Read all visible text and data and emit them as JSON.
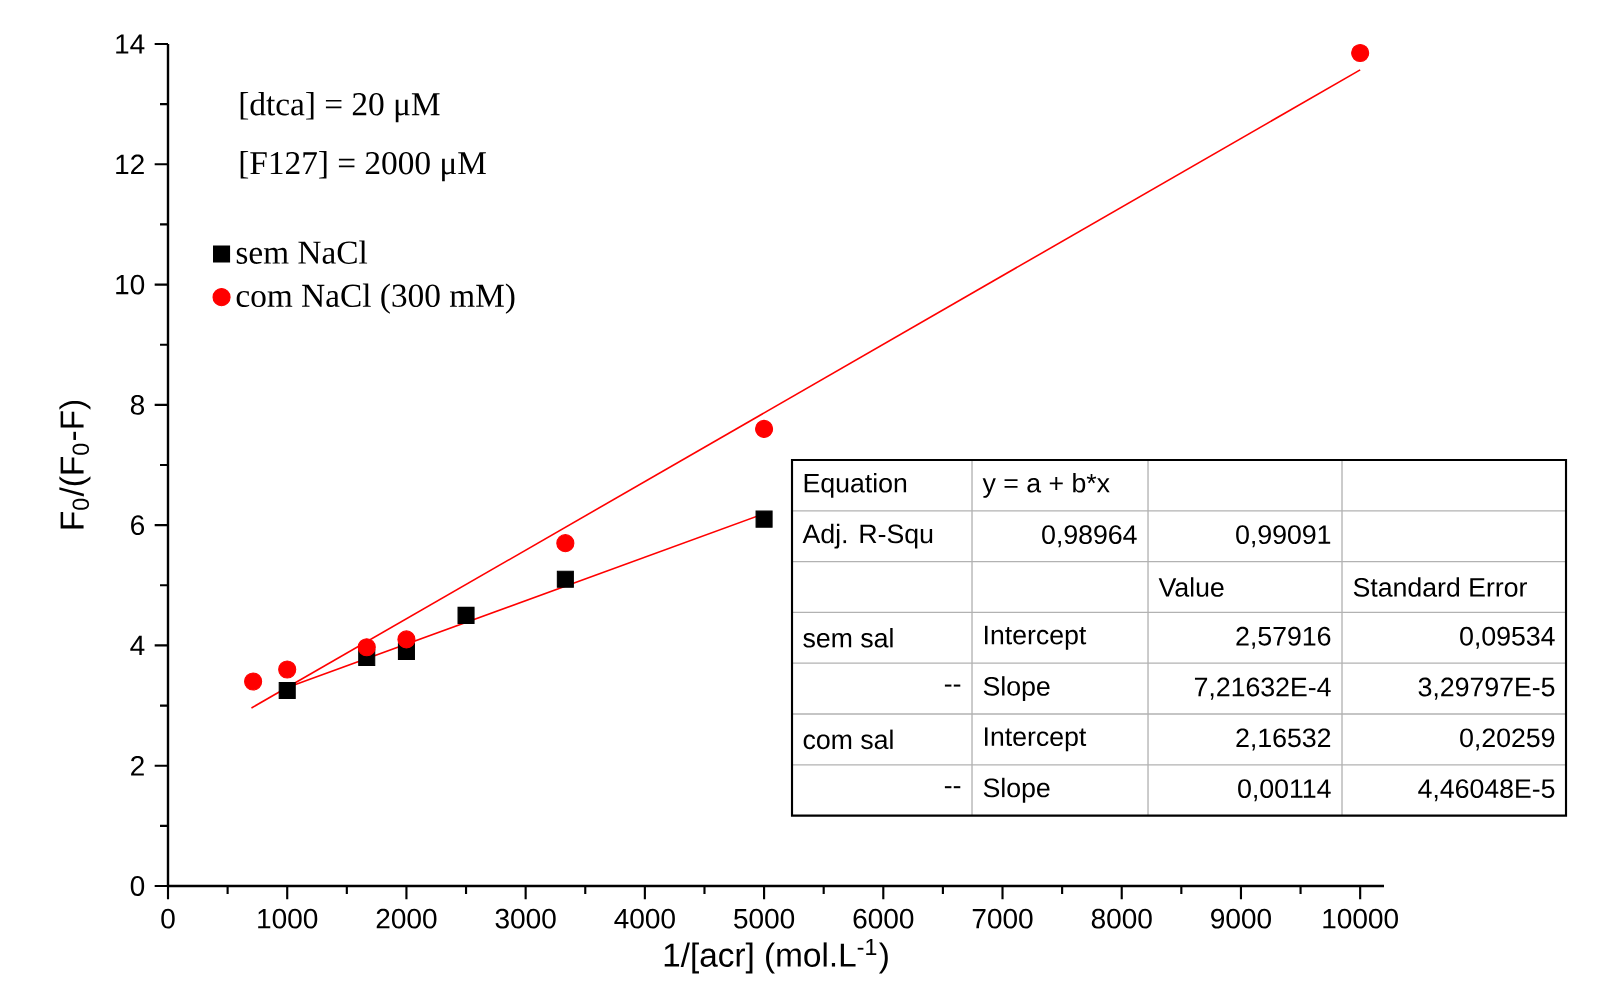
{
  "chart_data": {
    "type": "scatter",
    "xlabel": "1/[acr] (mol.L$^{-1}$)",
    "ylabel": "F$_{0}$/(F$_{0}$-F)",
    "xlim": [
      0,
      10200
    ],
    "ylim": [
      0,
      14
    ],
    "xticks": [
      0,
      1000,
      2000,
      3000,
      4000,
      5000,
      6000,
      7000,
      8000,
      9000,
      10000
    ],
    "yticks": [
      0,
      2,
      4,
      6,
      8,
      10,
      12,
      14
    ],
    "grid": false,
    "legend": "top left",
    "series": [
      {
        "name": "sem NaCl",
        "color": "#000000",
        "marker": "square",
        "x": [
          1000,
          1667,
          2000,
          2500,
          3333,
          5000
        ],
        "values": [
          3.25,
          3.8,
          3.9,
          4.5,
          5.1,
          6.1
        ]
      },
      {
        "name": "com NaCl (300 mM)",
        "color": "#ff0000",
        "marker": "circle",
        "x": [
          714,
          1000,
          1667,
          2000,
          3333,
          5000,
          10000
        ],
        "values": [
          3.4,
          3.6,
          3.97,
          4.1,
          5.7,
          7.6,
          13.85
        ]
      },
      {
        "type": "line",
        "color": "#ff0000",
        "marker": "none",
        "line_style": "solid",
        "x": [
          1000,
          5000
        ],
        "values": [
          3.3,
          6.19
        ]
      },
      {
        "type": "line",
        "color": "#ff0000",
        "marker": "none",
        "line_style": "solid",
        "x": [
          700,
          10000
        ],
        "values": [
          2.96,
          13.57
        ]
      }
    ],
    "annotations": [
      "[dtca] = 20 μM",
      "[F127] = 2000 μM",
      "Equation",
      "y = a + b*x",
      "Adj. R-Squ",
      "0,98964",
      "0,99091",
      "Value",
      "Standard Error",
      "sem sal",
      "Intercept",
      "2,57916",
      "0,09534",
      "--",
      "Slope",
      "7,21632E-4",
      "3,29797E-5",
      "com sal",
      "Intercept",
      "2,16532",
      "0,20259",
      "--",
      "Slope",
      "0,00114",
      "4,46048E-5"
    ]
  }
}
